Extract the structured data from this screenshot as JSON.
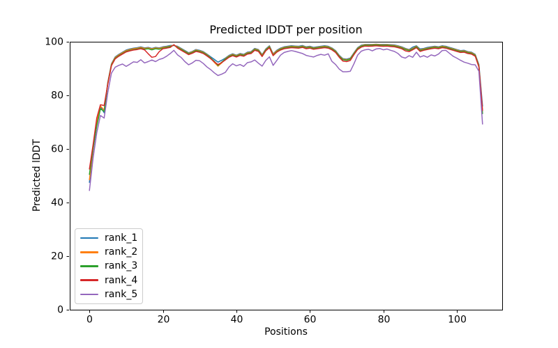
{
  "figure": {
    "background": "#ffffff"
  },
  "chart_data": {
    "type": "line",
    "title": "Predicted lDDT per position",
    "xlabel": "Positions",
    "ylabel": "Predicted lDDT",
    "xlim": [
      -5.35,
      112.35
    ],
    "ylim": [
      0,
      100
    ],
    "xticks": [
      0,
      20,
      40,
      60,
      80,
      100
    ],
    "yticks": [
      0,
      20,
      40,
      60,
      80,
      100
    ],
    "grid": false,
    "legend_position": "lower left",
    "x_is_index": true,
    "line_width": 1.5,
    "series": [
      {
        "name": "rank_1",
        "color": "#1f77b4",
        "values": [
          47.5,
          59.5,
          69.0,
          75.8,
          73.5,
          84.8,
          91.8,
          94.3,
          95.3,
          96.1,
          96.9,
          97.3,
          97.6,
          97.8,
          98.1,
          97.7,
          97.9,
          97.5,
          97.9,
          97.7,
          98.1,
          98.3,
          98.6,
          98.6,
          98.3,
          97.5,
          96.7,
          95.9,
          96.4,
          97.1,
          96.8,
          96.3,
          95.4,
          94.4,
          93.4,
          92.4,
          93.1,
          93.9,
          94.9,
          95.5,
          95.0,
          95.6,
          95.3,
          96.1,
          96.3,
          97.5,
          97.1,
          95.2,
          97.3,
          98.5,
          95.5,
          96.8,
          97.6,
          98.1,
          98.3,
          98.5,
          98.4,
          98.3,
          98.6,
          98.1,
          98.3,
          97.9,
          98.1,
          98.3,
          98.5,
          98.3,
          97.7,
          96.7,
          94.9,
          93.7,
          93.5,
          93.9,
          95.9,
          97.8,
          98.7,
          99.0,
          99.0,
          99.0,
          99.1,
          99.0,
          99.0,
          99.0,
          98.9,
          98.8,
          98.5,
          98.1,
          97.5,
          97.1,
          98.0,
          98.5,
          97.3,
          97.5,
          97.9,
          98.1,
          98.3,
          98.1,
          98.5,
          98.3,
          97.9,
          97.5,
          97.1,
          96.7,
          96.8,
          96.3,
          96.1,
          95.3,
          91.5,
          76.0
        ]
      },
      {
        "name": "rank_2",
        "color": "#ff7f0e",
        "values": [
          48.5,
          60.0,
          70.0,
          76.0,
          74.5,
          84.6,
          91.6,
          94.1,
          95.1,
          95.9,
          96.7,
          97.1,
          97.4,
          97.6,
          97.9,
          97.5,
          97.7,
          97.3,
          97.7,
          97.5,
          97.9,
          98.1,
          98.4,
          98.7,
          98.1,
          97.3,
          96.5,
          95.7,
          96.2,
          96.9,
          96.6,
          96.1,
          95.2,
          94.0,
          92.3,
          90.9,
          92.1,
          93.7,
          94.7,
          95.3,
          94.8,
          95.4,
          95.1,
          95.9,
          96.1,
          97.3,
          96.9,
          95.0,
          97.1,
          98.3,
          95.3,
          96.6,
          97.4,
          97.9,
          98.1,
          98.3,
          98.2,
          98.1,
          98.4,
          97.9,
          98.1,
          97.7,
          97.9,
          98.1,
          98.3,
          98.1,
          97.5,
          96.5,
          94.7,
          93.5,
          93.3,
          93.7,
          95.7,
          97.6,
          98.5,
          98.9,
          98.8,
          98.9,
          99.0,
          98.9,
          98.8,
          98.9,
          98.7,
          98.6,
          98.3,
          97.9,
          97.3,
          96.9,
          97.5,
          98.3,
          96.9,
          97.3,
          97.6,
          97.9,
          98.1,
          97.9,
          98.3,
          98.1,
          97.7,
          97.3,
          96.9,
          96.5,
          96.6,
          96.1,
          95.9,
          95.1,
          91.1,
          74.2
        ]
      },
      {
        "name": "rank_3",
        "color": "#2ca02c",
        "values": [
          50.5,
          60.5,
          68.5,
          75.0,
          74.0,
          84.3,
          91.3,
          93.8,
          94.8,
          95.6,
          96.4,
          96.8,
          97.1,
          97.3,
          97.6,
          97.2,
          97.4,
          97.0,
          97.4,
          97.2,
          97.6,
          97.9,
          98.2,
          98.7,
          97.9,
          97.1,
          96.3,
          95.5,
          96.0,
          96.7,
          96.4,
          95.9,
          95.0,
          93.9,
          92.7,
          91.2,
          92.4,
          93.5,
          94.5,
          95.1,
          94.6,
          95.2,
          94.9,
          95.7,
          95.9,
          97.1,
          96.7,
          94.7,
          96.9,
          98.1,
          95.0,
          96.3,
          97.2,
          97.7,
          97.9,
          98.1,
          98.0,
          97.9,
          98.2,
          97.7,
          97.9,
          97.5,
          97.7,
          97.9,
          98.1,
          97.9,
          97.3,
          96.3,
          94.5,
          93.3,
          93.1,
          93.5,
          95.5,
          97.4,
          98.3,
          98.7,
          98.6,
          98.7,
          98.8,
          98.7,
          98.6,
          98.7,
          98.5,
          98.4,
          98.1,
          97.7,
          97.1,
          96.7,
          97.3,
          98.1,
          96.7,
          97.1,
          97.4,
          97.7,
          97.9,
          97.7,
          98.1,
          97.9,
          97.5,
          97.1,
          96.7,
          96.3,
          96.4,
          95.9,
          95.7,
          94.9,
          90.8,
          73.2
        ]
      },
      {
        "name": "rank_4",
        "color": "#d62728",
        "values": [
          52.5,
          61.5,
          71.5,
          76.5,
          76.2,
          84.1,
          91.1,
          93.6,
          94.6,
          95.4,
          96.2,
          96.6,
          96.9,
          97.1,
          97.4,
          97.0,
          95.5,
          94.2,
          94.5,
          96.3,
          97.4,
          97.6,
          97.9,
          98.9,
          97.6,
          96.8,
          96.0,
          95.2,
          95.7,
          96.4,
          96.1,
          95.6,
          94.7,
          93.7,
          92.5,
          91.5,
          92.2,
          93.2,
          94.2,
          94.8,
          94.3,
          94.9,
          94.6,
          95.4,
          95.6,
          96.8,
          96.4,
          94.5,
          96.6,
          97.8,
          94.8,
          96.1,
          96.9,
          97.4,
          97.6,
          97.8,
          97.7,
          97.6,
          97.9,
          97.4,
          97.6,
          97.2,
          97.4,
          97.6,
          97.8,
          97.6,
          97.0,
          96.0,
          94.2,
          92.8,
          92.6,
          93.0,
          95.2,
          97.1,
          98.0,
          98.4,
          98.3,
          98.4,
          98.5,
          98.4,
          98.3,
          98.4,
          98.2,
          98.1,
          97.8,
          97.4,
          96.6,
          96.3,
          97.0,
          97.8,
          96.4,
          96.8,
          97.1,
          97.4,
          97.6,
          97.4,
          97.8,
          97.6,
          97.2,
          96.8,
          96.4,
          96.0,
          96.1,
          95.6,
          95.4,
          94.6,
          90.6,
          74.4
        ]
      },
      {
        "name": "rank_5",
        "color": "#9467bd",
        "values": [
          44.5,
          56.5,
          66.0,
          72.5,
          71.5,
          81.0,
          88.3,
          90.5,
          91.2,
          91.7,
          90.8,
          91.6,
          92.5,
          92.3,
          93.3,
          92.1,
          92.6,
          93.2,
          92.6,
          93.4,
          93.8,
          94.6,
          95.6,
          96.8,
          95.1,
          94.1,
          92.6,
          91.4,
          92.1,
          93.1,
          92.9,
          91.9,
          90.6,
          89.6,
          88.4,
          87.4,
          87.9,
          88.6,
          90.6,
          91.8,
          91.0,
          91.5,
          90.8,
          92.2,
          92.5,
          93.2,
          92.0,
          90.9,
          93.0,
          94.4,
          91.2,
          93.0,
          95.0,
          96.0,
          96.4,
          96.7,
          96.4,
          96.0,
          95.6,
          94.9,
          94.6,
          94.3,
          94.9,
          95.3,
          95.0,
          95.5,
          92.7,
          91.5,
          89.8,
          88.8,
          88.8,
          89.0,
          91.8,
          95.0,
          96.5,
          97.0,
          97.2,
          96.6,
          97.3,
          97.5,
          97.0,
          97.3,
          96.8,
          96.4,
          95.6,
          94.3,
          93.9,
          94.8,
          94.2,
          96.1,
          94.3,
          94.8,
          94.2,
          95.1,
          94.7,
          95.4,
          96.7,
          96.8,
          95.7,
          94.6,
          93.9,
          93.1,
          92.4,
          92.0,
          91.5,
          91.4,
          89.0,
          69.3
        ]
      }
    ]
  }
}
